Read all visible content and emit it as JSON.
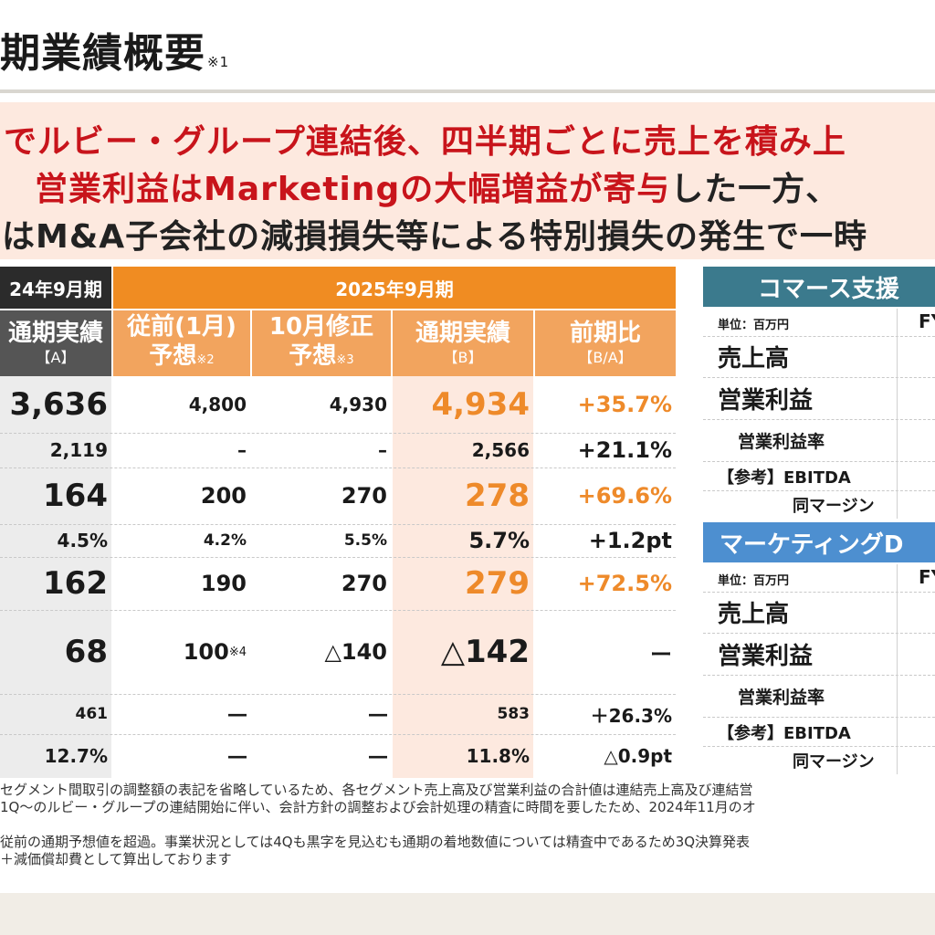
{
  "page": {
    "title": "期業績概要",
    "title_note": "※1"
  },
  "banner": {
    "line1": "でルビー・グループ連結後、四半期ごとに売上を積み上",
    "line2_red": "営業利益はMarketingの大幅増益が寄与",
    "line2_dark": "した一方、",
    "line3": "はM&A子会社の減損損失等による特別損失の発生で一時"
  },
  "table": {
    "header_fy24": "24年9月期",
    "header_fy25": "2025年9月期",
    "columns": [
      {
        "line1": "通期実績",
        "line2": "【A】"
      },
      {
        "line1": "従前(1月)",
        "line2": "予想",
        "note": "※2"
      },
      {
        "line1": "10月修正",
        "line2": "予想",
        "note": "※3"
      },
      {
        "line1": "通期実績",
        "line2": "【B】"
      },
      {
        "line1": "前期比",
        "line2": "【B/A】"
      }
    ],
    "rows": [
      {
        "a": "3,636",
        "b": "4,800",
        "c": "4,930",
        "d": "4,934",
        "e": "+35.7%"
      },
      {
        "a": "2,119",
        "b": "–",
        "c": "–",
        "d": "2,566",
        "e": "+21.1%"
      },
      {
        "a": "164",
        "b": "200",
        "c": "270",
        "d": "278",
        "e": "+69.6%"
      },
      {
        "a": "4.5%",
        "b": "4.2%",
        "c": "5.5%",
        "d": "5.7%",
        "e": "+1.2pt"
      },
      {
        "a": "162",
        "b": "190",
        "c": "270",
        "d": "279",
        "e": "+72.5%"
      },
      {
        "a": "68",
        "b": "100",
        "b_note": "※4",
        "c": "△140",
        "d": "△142",
        "e": "ー"
      },
      {
        "a": "461",
        "b": "―",
        "c": "―",
        "d": "583",
        "e": "＋26.3%"
      },
      {
        "a": "12.7%",
        "b": "―",
        "c": "―",
        "d": "11.8%",
        "e": "△0.9pt"
      }
    ]
  },
  "segments": [
    {
      "name": "コマース支援",
      "unit": "単位：百万円",
      "fy": "FY",
      "items": [
        "売上高",
        "営業利益",
        "営業利益率",
        "【参考】EBITDA",
        "同マージン"
      ]
    },
    {
      "name": "マーケティングD",
      "unit": "単位：百万円",
      "fy": "FY",
      "items": [
        "売上高",
        "営業利益",
        "営業利益率",
        "【参考】EBITDA",
        "同マージン"
      ]
    }
  ],
  "footnotes": [
    "セグメント間取引の調整額の表記を省略しているため、各セグメント売上高及び営業利益の合計値は連結売上高及び連結営",
    "1Q～のルビー・グループの連結開始に伴い、会計方針の調整および会計処理の精査に時間を要したため、2024年11月のオ",
    "",
    "従前の通期予想値を超過。事業状況としては4Qも黒字を見込むも通期の着地数値については精査中であるため3Q決算発表",
    "＋減価償却費として算出しております"
  ]
}
